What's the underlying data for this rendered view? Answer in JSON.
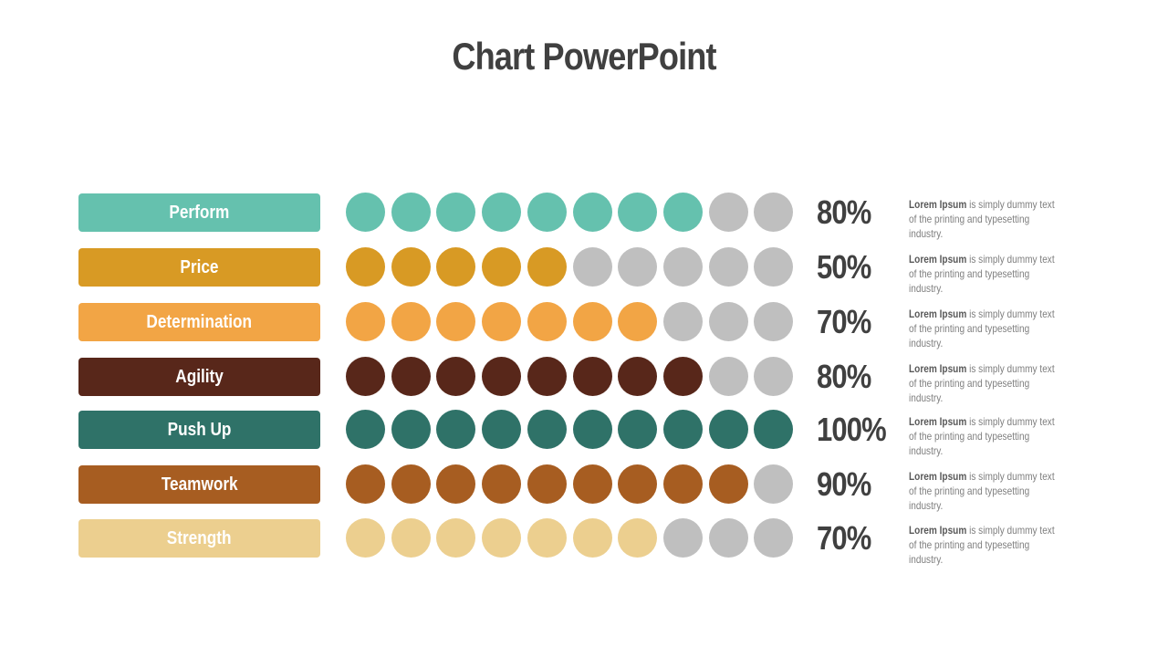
{
  "title": "Chart PowerPoint",
  "empty_color": "#bfbfbf",
  "chart_data": {
    "type": "pictograph",
    "title": "Chart PowerPoint",
    "dots_per_row": 10,
    "categories": [
      "Perform",
      "Price",
      "Determination",
      "Agility",
      "Push Up",
      "Teamwork",
      "Strength"
    ],
    "values": [
      80,
      50,
      70,
      80,
      100,
      90,
      70
    ],
    "unit": "%",
    "value_labels": [
      "80%",
      "50%",
      "70%",
      "80%",
      "100%",
      "90%",
      "70%"
    ],
    "colors": [
      "#65c1ae",
      "#d89a24",
      "#f2a545",
      "#58271a",
      "#2f7268",
      "#a75d21",
      "#eccf8f"
    ],
    "descriptions": [
      {
        "bold": "Lorem Ipsum",
        "text": " is simply dummy text of the printing and typesetting industry."
      },
      {
        "bold": "Lorem Ipsum",
        "text": " is simply dummy text of the printing and typesetting industry."
      },
      {
        "bold": "Lorem Ipsum",
        "text": " is simply dummy text of the printing and typesetting industry."
      },
      {
        "bold": "Lorem Ipsum",
        "text": " is simply dummy text of the printing and typesetting industry."
      },
      {
        "bold": "Lorem Ipsum",
        "text": " is simply dummy text of the printing and typesetting industry."
      },
      {
        "bold": "Lorem Ipsum",
        "text": " is simply dummy text of the printing and typesetting industry."
      },
      {
        "bold": "Lorem Ipsum",
        "text": " is simply dummy text of the printing and typesetting industry."
      }
    ]
  }
}
